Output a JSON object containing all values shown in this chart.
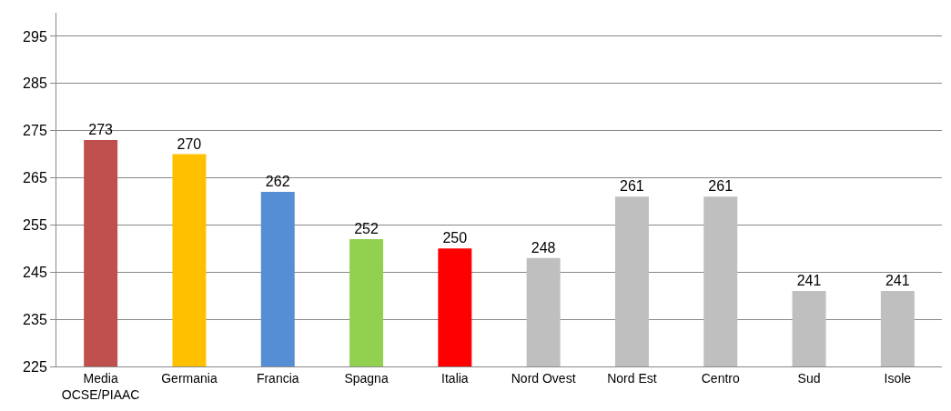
{
  "chart_data": {
    "type": "bar",
    "categories": [
      "Media\nOCSE/PIAAC",
      "Germania",
      "Francia",
      "Spagna",
      "Italia",
      "Nord Ovest",
      "Nord Est",
      "Centro",
      "Sud",
      "Isole"
    ],
    "values": [
      273,
      270,
      262,
      252,
      250,
      248,
      261,
      261,
      241,
      241
    ],
    "colors": [
      "#c0504d",
      "#ffc000",
      "#558ed5",
      "#92d050",
      "#ff0000",
      "#bfbfbf",
      "#bfbfbf",
      "#bfbfbf",
      "#bfbfbf",
      "#bfbfbf"
    ],
    "ylim": [
      225,
      300
    ],
    "yticks": [
      225,
      235,
      245,
      255,
      265,
      275,
      285,
      295
    ],
    "grid": "y",
    "data_labels": true
  }
}
